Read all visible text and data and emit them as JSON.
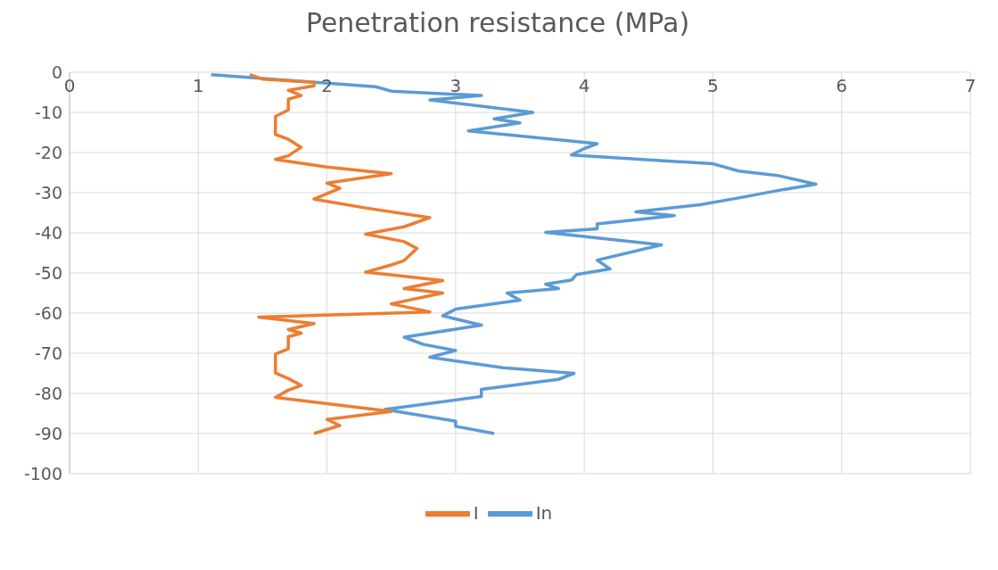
{
  "chart_data": {
    "type": "line",
    "title": "Penetration resistance (MPa)",
    "xlim": [
      0,
      7
    ],
    "xticks": [
      0,
      1,
      2,
      3,
      4,
      5,
      6,
      7
    ],
    "ylim": [
      -100,
      0
    ],
    "yticks": [
      -100,
      -90,
      -80,
      -70,
      -60,
      -50,
      -40,
      -30,
      -20,
      -10,
      0
    ],
    "grid": true,
    "legend": "bottom",
    "series": [
      {
        "name": "In",
        "color": "#5b9bd5",
        "x": [
          1.1,
          2.38,
          2.5,
          3.2,
          2.8,
          3.6,
          3.3,
          3.5,
          3.1,
          4.1,
          4.0,
          3.9,
          5.0,
          5.2,
          5.5,
          5.8,
          5.55,
          5.2,
          4.9,
          4.4,
          4.7,
          4.1,
          4.1,
          3.7,
          4.6,
          4.1,
          4.2,
          3.94,
          3.9,
          3.7,
          3.8,
          3.4,
          3.5,
          3.0,
          2.9,
          3.2,
          2.6,
          2.75,
          3.0,
          2.8,
          3.37,
          3.92,
          3.8,
          3.2,
          3.2,
          2.45,
          3.0,
          3.0,
          3.3
        ],
        "values": [
          -0.6,
          -3.6,
          -4.7,
          -5.8,
          -6.9,
          -10,
          -11.6,
          -12.6,
          -14.6,
          -17.8,
          -19,
          -20.6,
          -22.8,
          -24.6,
          -25.7,
          -27.9,
          -29.2,
          -31.3,
          -33,
          -34.8,
          -35.7,
          -37.8,
          -39,
          -39.9,
          -43,
          -46.8,
          -49,
          -50.4,
          -51.8,
          -52.8,
          -53.9,
          -55,
          -56.8,
          -59,
          -60.7,
          -63,
          -66,
          -67.8,
          -69.3,
          -71,
          -73.6,
          -75,
          -76.5,
          -79,
          -80.8,
          -84,
          -86.9,
          -88.2,
          -90
        ]
      },
      {
        "name": "I",
        "color": "#ed7d31",
        "x": [
          1.4,
          1.5,
          1.9,
          1.9,
          1.7,
          1.8,
          1.7,
          1.7,
          1.6,
          1.6,
          1.7,
          1.8,
          1.7,
          1.6,
          2.0,
          2.5,
          2.0,
          2.1,
          1.9,
          2.3,
          2.8,
          2.6,
          2.3,
          2.6,
          2.7,
          2.6,
          2.5,
          2.3,
          2.9,
          2.6,
          2.9,
          2.5,
          2.8,
          1.47,
          1.9,
          1.7,
          1.8,
          1.7,
          1.7,
          1.6,
          1.6,
          1.7,
          1.8,
          1.7,
          1.6,
          2.5,
          2.0,
          2.1,
          1.9
        ],
        "values": [
          -0.6,
          -1.7,
          -2.5,
          -3.4,
          -4.5,
          -5.8,
          -6.7,
          -9.4,
          -11,
          -15.5,
          -16.7,
          -18.7,
          -20.8,
          -21.7,
          -23.6,
          -25.3,
          -27.6,
          -28.9,
          -31.6,
          -33.8,
          -36.2,
          -38.5,
          -40.3,
          -42.2,
          -43.9,
          -46.9,
          -48,
          -49.8,
          -51.9,
          -53.9,
          -55,
          -57.7,
          -59.7,
          -61,
          -62.6,
          -64.1,
          -65,
          -65.9,
          -68.9,
          -70.2,
          -74.9,
          -76.3,
          -78,
          -79.2,
          -81,
          -84.5,
          -86.5,
          -88,
          -90
        ]
      }
    ]
  }
}
